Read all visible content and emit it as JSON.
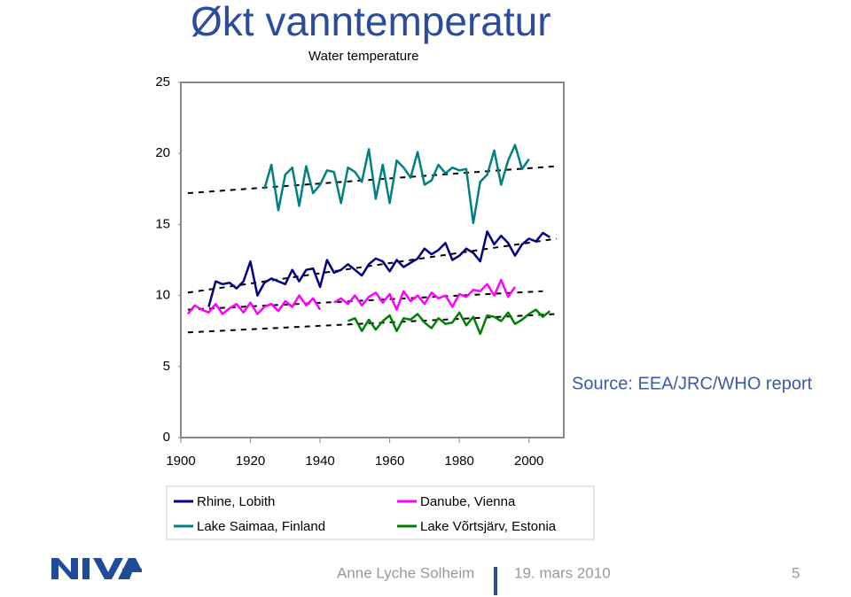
{
  "slide_title": "Økt vanntemperatur",
  "source": "Source: EEA/JRC/WHO report",
  "footer": {
    "author": "Anne Lyche Solheim",
    "date": "19. mars 2010",
    "page": "5"
  },
  "chart_data": {
    "type": "line",
    "title": "Water temperature",
    "xlim": [
      1900,
      2010
    ],
    "xticks": [
      1900,
      1920,
      1940,
      1960,
      1980,
      2000
    ],
    "ylim": [
      0,
      25
    ],
    "yticks": [
      0,
      5,
      10,
      15,
      20,
      25
    ],
    "grid": false,
    "series": [
      {
        "name": "Rhine, Lobith",
        "color": "#000080",
        "x": [
          1908,
          1910,
          1912,
          1914,
          1916,
          1918,
          1920,
          1922,
          1924,
          1926,
          1928,
          1930,
          1932,
          1934,
          1936,
          1938,
          1940,
          1942,
          1944,
          1946,
          1948,
          1950,
          1952,
          1954,
          1956,
          1958,
          1960,
          1962,
          1964,
          1966,
          1968,
          1970,
          1972,
          1974,
          1976,
          1978,
          1980,
          1982,
          1984,
          1986,
          1988,
          1990,
          1992,
          1994,
          1996,
          1998,
          2000,
          2002,
          2004,
          2006
        ],
        "values": [
          9.2,
          11.0,
          10.8,
          10.9,
          10.5,
          11.0,
          12.4,
          10.0,
          10.9,
          11.2,
          11.0,
          10.8,
          11.8,
          11.0,
          11.8,
          11.9,
          10.6,
          12.5,
          11.6,
          11.8,
          12.2,
          11.8,
          11.4,
          12.2,
          12.6,
          12.4,
          11.7,
          12.5,
          12.0,
          12.3,
          12.6,
          13.3,
          12.9,
          13.2,
          13.7,
          12.5,
          12.8,
          13.3,
          13.0,
          12.4,
          14.5,
          13.6,
          14.2,
          13.7,
          12.8,
          13.6,
          14.0,
          13.8,
          14.4,
          14.1
        ]
      },
      {
        "name": "Danube, Vienna",
        "color": "#ff00ff",
        "x": [
          1902,
          1904,
          1906,
          1908,
          1910,
          1912,
          1914,
          1916,
          1918,
          1920,
          1922,
          1924,
          1926,
          1928,
          1930,
          1932,
          1934,
          1936,
          1938,
          1940,
          1942,
          1944,
          1946,
          1948,
          1950,
          1952,
          1954,
          1956,
          1958,
          1960,
          1962,
          1964,
          1966,
          1968,
          1970,
          1972,
          1974,
          1976,
          1978,
          1980,
          1982,
          1984,
          1986,
          1988,
          1990,
          1992,
          1994,
          1996
        ],
        "values": [
          8.7,
          9.3,
          9.0,
          8.8,
          9.4,
          8.7,
          9.1,
          9.4,
          8.8,
          9.5,
          8.7,
          9.2,
          9.4,
          8.9,
          9.6,
          9.2,
          10.0,
          9.3,
          9.8,
          9.0,
          null,
          9.5,
          9.8,
          9.4,
          10.0,
          9.3,
          9.9,
          10.2,
          9.5,
          10.1,
          9.0,
          10.3,
          9.6,
          10.0,
          9.4,
          10.2,
          9.8,
          10.0,
          9.2,
          10.1,
          9.9,
          10.4,
          10.3,
          10.8,
          10.0,
          11.1,
          9.9,
          10.6
        ]
      },
      {
        "name": "Lake Saimaa, Finland",
        "color": "#008080",
        "x": [
          1924,
          1926,
          1928,
          1930,
          1932,
          1934,
          1936,
          1938,
          1940,
          1942,
          1944,
          1946,
          1948,
          1950,
          1952,
          1954,
          1956,
          1958,
          1960,
          1962,
          1964,
          1966,
          1968,
          1970,
          1972,
          1974,
          1976,
          1978,
          1980,
          1982,
          1984,
          1986,
          1988,
          1990,
          1992,
          1994,
          1996,
          1998,
          2000
        ],
        "values": [
          17.5,
          19.2,
          16.0,
          18.5,
          19.0,
          16.3,
          19.1,
          17.2,
          17.8,
          18.8,
          18.7,
          16.5,
          19.0,
          18.7,
          18.0,
          20.3,
          16.8,
          19.2,
          16.5,
          19.5,
          19.0,
          18.3,
          20.1,
          17.8,
          18.1,
          19.2,
          18.6,
          19.0,
          18.8,
          18.9,
          15.1,
          18.0,
          18.5,
          20.2,
          17.8,
          19.5,
          20.6,
          18.9,
          19.6
        ]
      },
      {
        "name": "Lake Võrtsjärv, Estonia",
        "color": "#008000",
        "x": [
          1948,
          1950,
          1952,
          1954,
          1956,
          1958,
          1960,
          1962,
          1964,
          1966,
          1968,
          1970,
          1972,
          1974,
          1976,
          1978,
          1980,
          1982,
          1984,
          1986,
          1988,
          1990,
          1992,
          1994,
          1996,
          1998,
          2000,
          2002,
          2004,
          2006
        ],
        "values": [
          8.2,
          8.4,
          7.5,
          8.3,
          7.6,
          8.2,
          8.6,
          7.5,
          8.4,
          8.3,
          8.7,
          8.1,
          7.7,
          8.4,
          8.0,
          8.1,
          8.8,
          7.9,
          8.5,
          7.3,
          8.6,
          8.5,
          8.2,
          8.8,
          8.0,
          8.3,
          8.7,
          9.0,
          8.5,
          8.9
        ]
      }
    ],
    "trends": [
      {
        "x": [
          1902,
          2008
        ],
        "values": [
          10.2,
          14.0
        ]
      },
      {
        "x": [
          1902,
          2004
        ],
        "values": [
          9.0,
          10.3
        ]
      },
      {
        "x": [
          1902,
          2008
        ],
        "values": [
          17.2,
          19.1
        ]
      },
      {
        "x": [
          1902,
          2008
        ],
        "values": [
          7.4,
          8.7
        ]
      }
    ]
  }
}
